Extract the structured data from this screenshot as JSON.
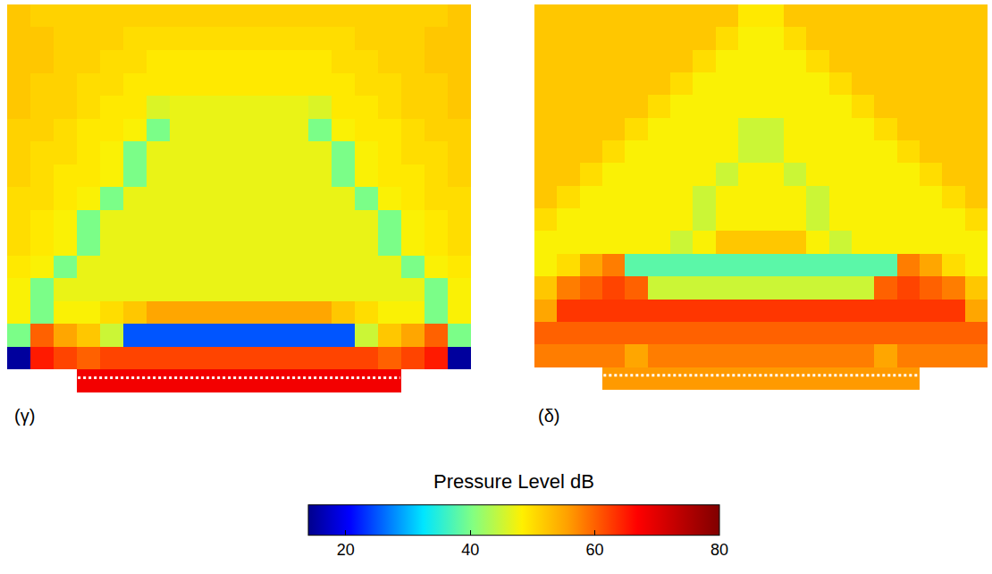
{
  "chart_data": {
    "type": "heatmap",
    "colorbar": {
      "title": "Pressure Level dB",
      "range": [
        14,
        80
      ],
      "ticks": [
        20,
        40,
        60,
        80
      ]
    },
    "panels": [
      {
        "label": "(γ)",
        "cells": [
          [
            52,
            51,
            51,
            51,
            51,
            51,
            51,
            51,
            51,
            51,
            51,
            51,
            51,
            51,
            51,
            51,
            51,
            51,
            51,
            52
          ],
          [
            52,
            52,
            51,
            51,
            51,
            50,
            50,
            50,
            50,
            50,
            50,
            50,
            50,
            50,
            50,
            51,
            51,
            51,
            52,
            52
          ],
          [
            52,
            52,
            51,
            51,
            50,
            50,
            49,
            49,
            49,
            49,
            49,
            49,
            49,
            49,
            50,
            50,
            51,
            51,
            52,
            52
          ],
          [
            52,
            51,
            51,
            50,
            50,
            49,
            49,
            49,
            49,
            49,
            49,
            49,
            49,
            49,
            49,
            50,
            50,
            51,
            51,
            52
          ],
          [
            52,
            51,
            51,
            50,
            49,
            49,
            46,
            47,
            47,
            47,
            47,
            47,
            47,
            46,
            49,
            49,
            50,
            51,
            51,
            52
          ],
          [
            51,
            51,
            50,
            49,
            49,
            48,
            40,
            47,
            47,
            47,
            47,
            47,
            47,
            40,
            48,
            49,
            49,
            50,
            51,
            51
          ],
          [
            51,
            50,
            50,
            49,
            48,
            40,
            47,
            47,
            47,
            47,
            47,
            47,
            47,
            47,
            40,
            48,
            49,
            50,
            50,
            51
          ],
          [
            51,
            50,
            49,
            49,
            48,
            40,
            47,
            47,
            47,
            47,
            47,
            47,
            47,
            47,
            40,
            48,
            49,
            49,
            50,
            51
          ],
          [
            50,
            50,
            49,
            48,
            40,
            47,
            47,
            47,
            47,
            47,
            47,
            47,
            47,
            47,
            47,
            40,
            48,
            49,
            50,
            50
          ],
          [
            50,
            49,
            48,
            40,
            47,
            47,
            47,
            47,
            47,
            47,
            47,
            47,
            47,
            47,
            47,
            47,
            40,
            48,
            49,
            50
          ],
          [
            50,
            49,
            48,
            40,
            47,
            47,
            47,
            47,
            47,
            47,
            47,
            47,
            47,
            47,
            47,
            47,
            40,
            48,
            49,
            50
          ],
          [
            49,
            48,
            40,
            47,
            47,
            47,
            47,
            47,
            47,
            47,
            47,
            47,
            47,
            47,
            47,
            47,
            47,
            40,
            48,
            49
          ],
          [
            48,
            40,
            47,
            47,
            47,
            47,
            47,
            47,
            47,
            47,
            47,
            47,
            47,
            47,
            47,
            47,
            47,
            47,
            40,
            48
          ],
          [
            48,
            40,
            48,
            48,
            50,
            52,
            55,
            55,
            55,
            55,
            55,
            55,
            55,
            55,
            52,
            50,
            48,
            48,
            40,
            48
          ],
          [
            40,
            60,
            55,
            52,
            45,
            25,
            25,
            25,
            25,
            25,
            25,
            25,
            25,
            25,
            25,
            45,
            52,
            55,
            60,
            40
          ],
          [
            15,
            65,
            62,
            60,
            62,
            62,
            62,
            62,
            62,
            62,
            62,
            62,
            62,
            62,
            62,
            62,
            60,
            62,
            65,
            15
          ],
          [
            null,
            null,
            null,
            68,
            68,
            68,
            68,
            68,
            68,
            68,
            68,
            68,
            68,
            68,
            68,
            68,
            68,
            null,
            null,
            null
          ]
        ]
      },
      {
        "label": "(δ)",
        "cells": [
          [
            52,
            52,
            52,
            52,
            52,
            52,
            52,
            52,
            52,
            49,
            49,
            52,
            52,
            52,
            52,
            52,
            52,
            52,
            52,
            52
          ],
          [
            52,
            52,
            52,
            52,
            52,
            52,
            52,
            52,
            50,
            48,
            48,
            50,
            52,
            52,
            52,
            52,
            52,
            52,
            52,
            52
          ],
          [
            52,
            52,
            52,
            52,
            52,
            52,
            52,
            50,
            48,
            48,
            48,
            48,
            50,
            52,
            52,
            52,
            52,
            52,
            52,
            52
          ],
          [
            52,
            52,
            52,
            52,
            52,
            52,
            50,
            48,
            48,
            48,
            48,
            48,
            48,
            50,
            52,
            52,
            52,
            52,
            52,
            52
          ],
          [
            52,
            52,
            52,
            52,
            52,
            50,
            48,
            48,
            48,
            48,
            48,
            48,
            48,
            48,
            50,
            52,
            52,
            52,
            52,
            52
          ],
          [
            52,
            52,
            52,
            52,
            50,
            48,
            48,
            48,
            48,
            45,
            45,
            48,
            48,
            48,
            48,
            50,
            52,
            52,
            52,
            52
          ],
          [
            52,
            52,
            52,
            50,
            48,
            48,
            48,
            48,
            48,
            45,
            45,
            48,
            48,
            48,
            48,
            48,
            50,
            52,
            52,
            52
          ],
          [
            52,
            52,
            50,
            48,
            48,
            48,
            48,
            48,
            45,
            48,
            48,
            45,
            48,
            48,
            48,
            48,
            48,
            50,
            52,
            52
          ],
          [
            52,
            50,
            48,
            48,
            48,
            48,
            48,
            45,
            48,
            48,
            48,
            48,
            45,
            48,
            48,
            48,
            48,
            48,
            50,
            52
          ],
          [
            50,
            48,
            48,
            48,
            48,
            48,
            48,
            45,
            48,
            48,
            48,
            48,
            45,
            48,
            48,
            48,
            48,
            48,
            48,
            50
          ],
          [
            48,
            48,
            48,
            48,
            48,
            48,
            45,
            48,
            52,
            52,
            52,
            52,
            48,
            45,
            48,
            48,
            48,
            48,
            48,
            48
          ],
          [
            48,
            50,
            55,
            58,
            38,
            38,
            38,
            38,
            38,
            38,
            38,
            38,
            38,
            38,
            38,
            38,
            58,
            55,
            50,
            48
          ],
          [
            52,
            58,
            60,
            62,
            60,
            45,
            45,
            45,
            45,
            45,
            45,
            45,
            45,
            45,
            45,
            60,
            62,
            60,
            58,
            52
          ],
          [
            55,
            63,
            63,
            63,
            63,
            63,
            63,
            63,
            63,
            63,
            63,
            63,
            63,
            63,
            63,
            63,
            63,
            63,
            63,
            55
          ],
          [
            60,
            60,
            60,
            60,
            60,
            60,
            60,
            60,
            60,
            60,
            60,
            60,
            60,
            60,
            60,
            60,
            60,
            60,
            60,
            60
          ],
          [
            58,
            58,
            58,
            58,
            55,
            58,
            58,
            58,
            58,
            58,
            58,
            58,
            58,
            58,
            58,
            55,
            58,
            58,
            58,
            58
          ],
          [
            null,
            null,
            null,
            56,
            56,
            56,
            56,
            56,
            56,
            56,
            56,
            56,
            56,
            56,
            56,
            56,
            56,
            null,
            null,
            null
          ]
        ]
      }
    ]
  }
}
